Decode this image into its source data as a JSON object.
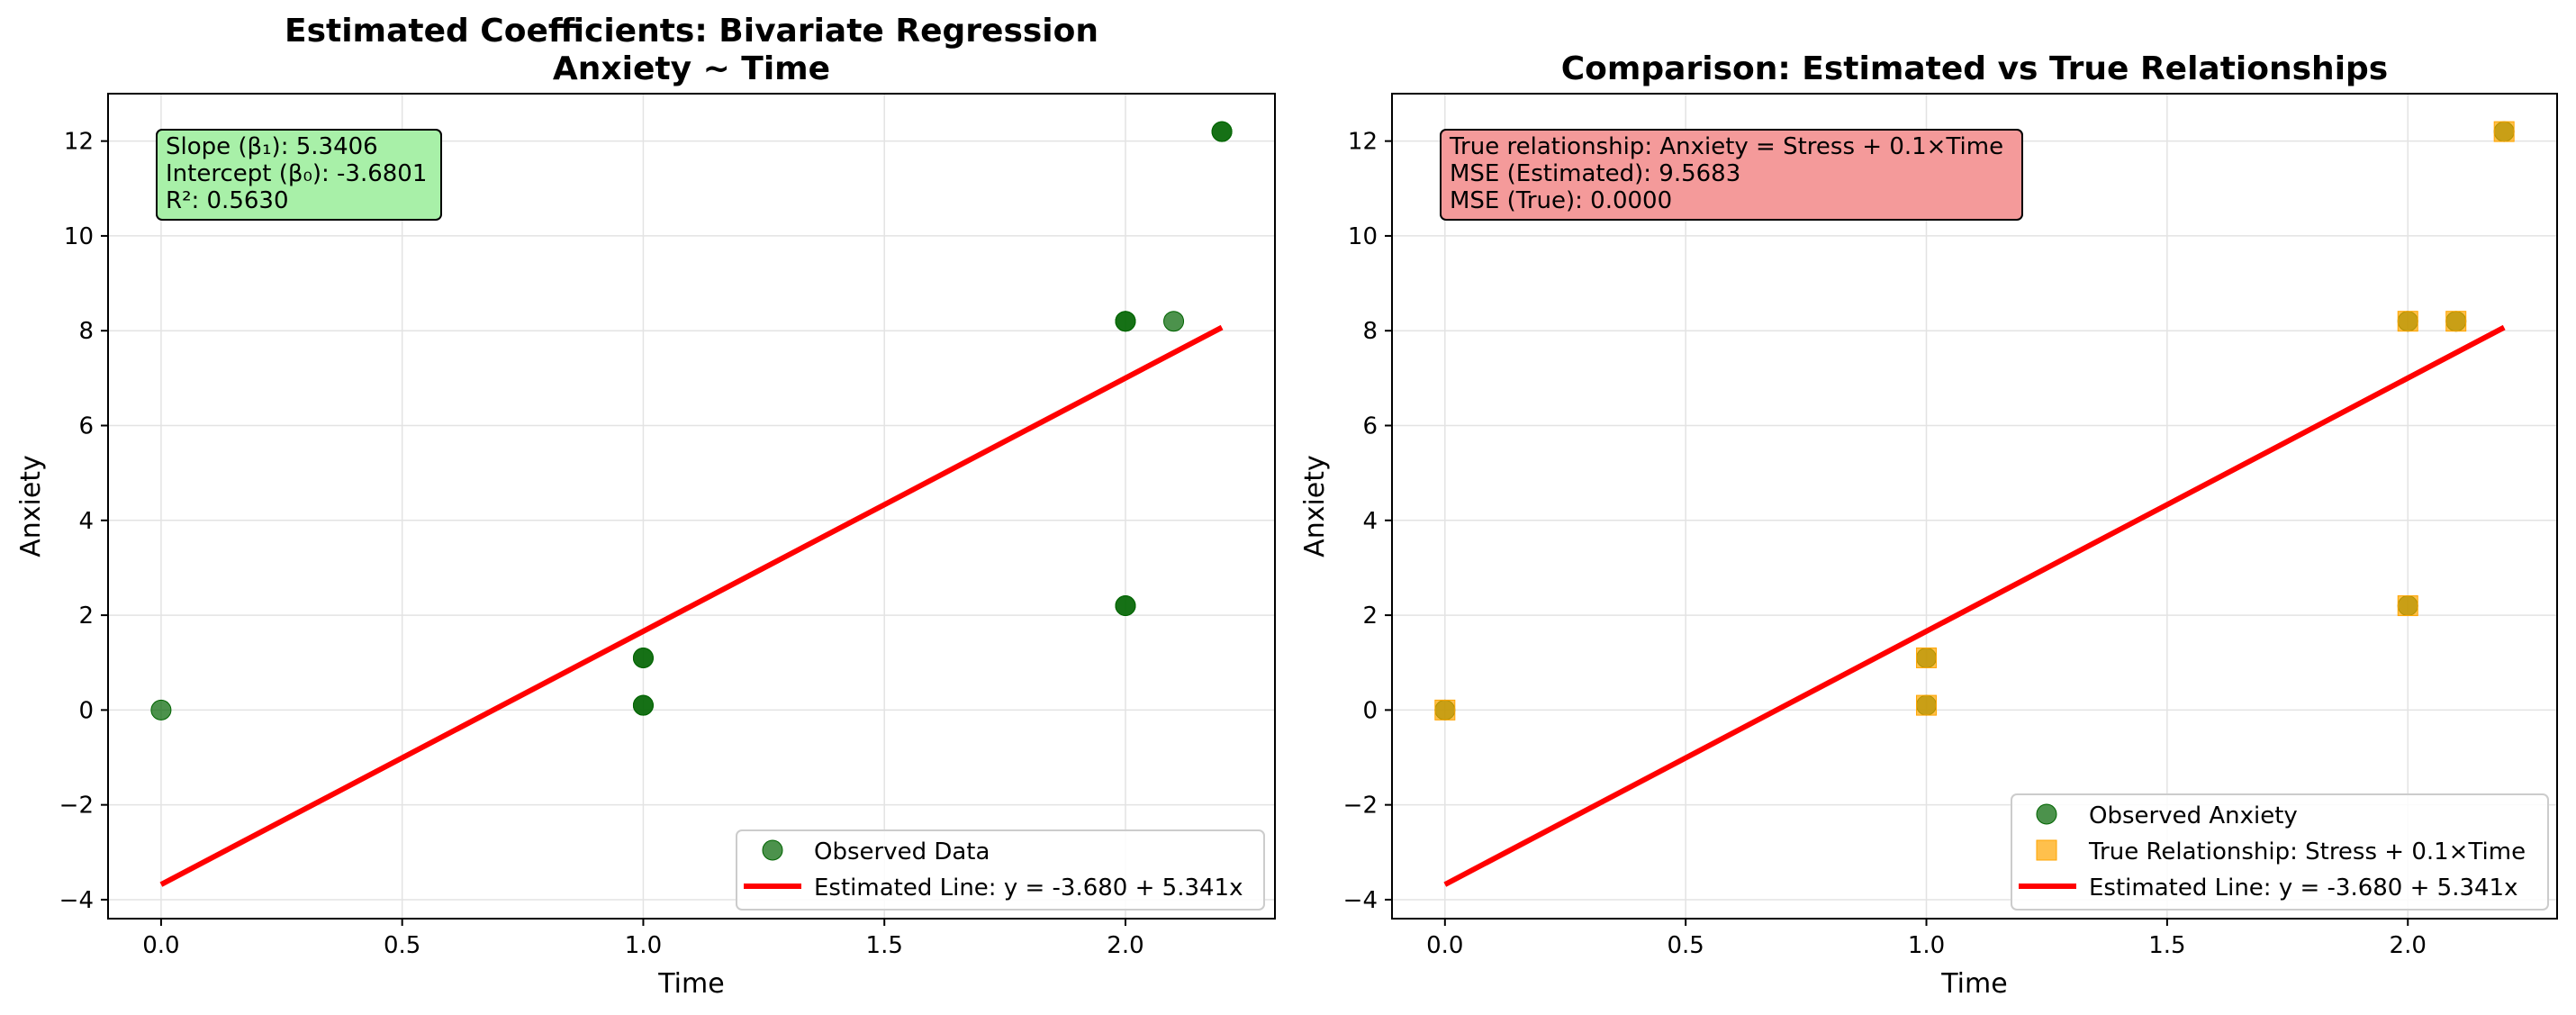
{
  "chart_data": [
    {
      "type": "scatter",
      "title": "Estimated Coefficients: Bivariate Regression",
      "subtitle": "Anxiety ~ Time",
      "xlabel": "Time",
      "ylabel": "Anxiety",
      "xlim": [
        -0.11,
        2.31
      ],
      "ylim": [
        -4.4,
        13.0
      ],
      "xticks": [
        0.0,
        0.5,
        1.0,
        1.5,
        2.0
      ],
      "xtick_labels": [
        "0.0",
        "0.5",
        "1.0",
        "1.5",
        "2.0"
      ],
      "yticks": [
        -4,
        -2,
        0,
        2,
        4,
        6,
        8,
        10,
        12
      ],
      "ytick_labels": [
        "−4",
        "−2",
        "0",
        "2",
        "4",
        "6",
        "8",
        "10",
        "12"
      ],
      "grid": true,
      "legend_position": "bottom-right",
      "series": [
        {
          "name": "Observed Data",
          "kind": "scatter",
          "marker": "circle",
          "color": "#006400",
          "x": [
            0.0,
            1.0,
            1.0,
            1.0,
            1.0,
            2.0,
            2.0,
            2.0,
            2.0,
            2.1,
            2.2,
            2.2
          ],
          "y": [
            0.0,
            1.1,
            1.1,
            0.1,
            0.1,
            8.2,
            8.2,
            2.2,
            2.2,
            8.2,
            12.2,
            12.2
          ]
        },
        {
          "name": "Estimated Line: y = -3.680 + 5.341x",
          "kind": "line",
          "color": "#ff0000",
          "x": [
            0.0,
            2.2
          ],
          "y": [
            -3.68,
            8.07
          ]
        }
      ],
      "annotation": {
        "lines": [
          "Slope (β₁): 5.3406",
          "Intercept (β₀): -3.6801",
          "R²: 0.5630"
        ],
        "background": "#a8f0a8"
      }
    },
    {
      "type": "scatter",
      "title": "Comparison: Estimated vs True Relationships",
      "subtitle": "",
      "xlabel": "Time",
      "ylabel": "Anxiety",
      "xlim": [
        -0.11,
        2.31
      ],
      "ylim": [
        -4.4,
        13.0
      ],
      "xticks": [
        0.0,
        0.5,
        1.0,
        1.5,
        2.0
      ],
      "xtick_labels": [
        "0.0",
        "0.5",
        "1.0",
        "1.5",
        "2.0"
      ],
      "yticks": [
        -4,
        -2,
        0,
        2,
        4,
        6,
        8,
        10,
        12
      ],
      "ytick_labels": [
        "−4",
        "−2",
        "0",
        "2",
        "4",
        "6",
        "8",
        "10",
        "12"
      ],
      "grid": true,
      "legend_position": "bottom-right",
      "series": [
        {
          "name": "Observed Anxiety",
          "kind": "scatter",
          "marker": "circle",
          "color": "#006400",
          "x": [
            0.0,
            1.0,
            1.0,
            2.0,
            2.0,
            2.1,
            2.2
          ],
          "y": [
            0.0,
            1.1,
            0.1,
            8.2,
            2.2,
            8.2,
            12.2
          ]
        },
        {
          "name": "True Relationship: Stress + 0.1×Time",
          "kind": "scatter",
          "marker": "square",
          "color": "#ffa500",
          "x": [
            0.0,
            1.0,
            1.0,
            2.0,
            2.0,
            2.1,
            2.2
          ],
          "y": [
            0.0,
            1.1,
            0.1,
            8.2,
            2.2,
            8.2,
            12.2
          ]
        },
        {
          "name": "Estimated Line: y = -3.680 + 5.341x",
          "kind": "line",
          "color": "#ff0000",
          "x": [
            0.0,
            2.2
          ],
          "y": [
            -3.68,
            8.07
          ]
        }
      ],
      "annotation": {
        "lines": [
          "True relationship: Anxiety = Stress + 0.1×Time",
          "MSE (Estimated): 9.5683",
          "MSE (True): 0.0000"
        ],
        "background": "#f49a9a"
      }
    }
  ]
}
